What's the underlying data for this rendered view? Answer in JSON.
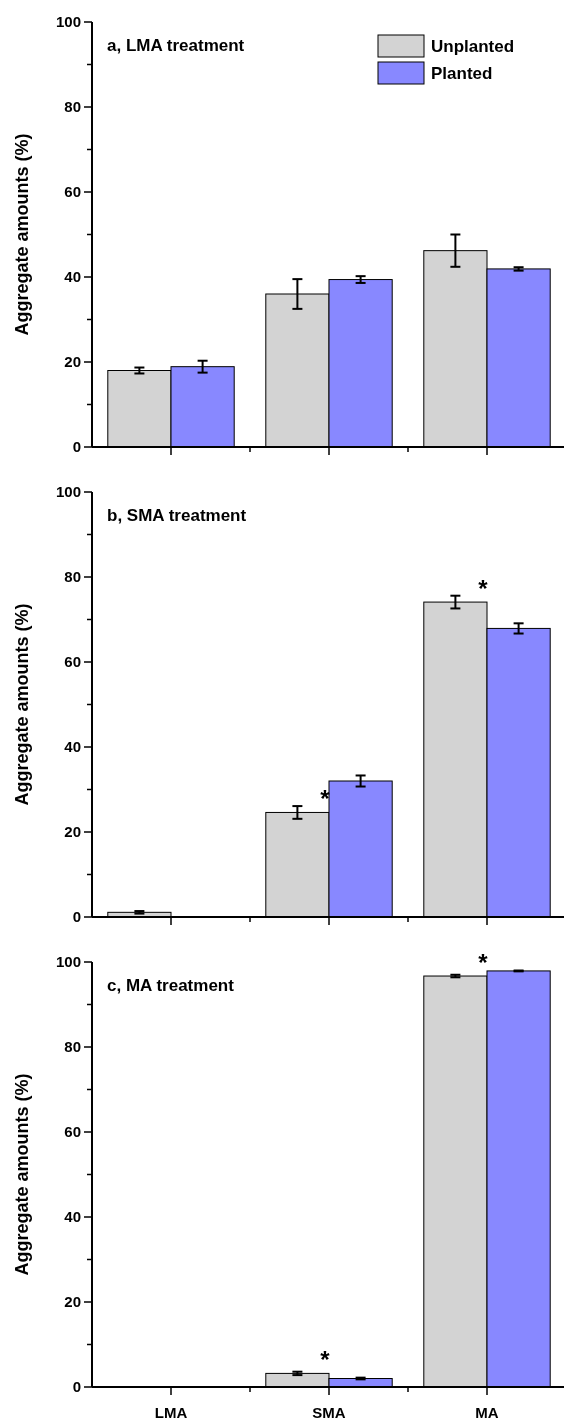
{
  "chart_data": [
    {
      "type": "bar",
      "title": "a, LMA treatment",
      "ylabel": "Aggregate amounts (%)",
      "categories": [
        "LMA",
        "SMA",
        "MA"
      ],
      "tick_labels": "y",
      "legend": "top right",
      "ylim": [
        0,
        100
      ],
      "yticks": [
        0,
        {
          "value": 10,
          "label": null
        },
        20,
        {
          "value": 30,
          "label": null
        },
        40,
        {
          "value": 50,
          "label": null
        },
        60,
        {
          "value": 70,
          "label": null
        },
        80,
        {
          "value": 90,
          "label": null
        },
        100
      ],
      "series": [
        {
          "name": "Unplanted",
          "color": "#d3d3d3",
          "values": [
            18,
            36,
            46.2
          ],
          "errors": [
            0.7,
            3.5,
            3.8
          ]
        },
        {
          "name": "Planted",
          "color": "#8888ff",
          "values": [
            18.9,
            39.4,
            41.9
          ],
          "errors": [
            1.4,
            0.8,
            0.4
          ]
        }
      ]
    },
    {
      "type": "bar",
      "title": "b, SMA treatment",
      "ylabel": "Aggregate amounts (%)",
      "categories": [
        "LMA",
        "SMA",
        "MA"
      ],
      "tick_labels": "y",
      "ylim": [
        0,
        100
      ],
      "yticks": [
        0,
        {
          "value": 10,
          "label": null
        },
        20,
        {
          "value": 30,
          "label": null
        },
        40,
        {
          "value": 50,
          "label": null
        },
        60,
        {
          "value": 70,
          "label": null
        },
        80,
        {
          "value": 90,
          "label": null
        },
        100
      ],
      "series": [
        {
          "color": "#d3d3d3",
          "values": [
            1.1,
            24.6,
            74.1
          ],
          "errors": [
            0.3,
            1.5,
            1.5
          ]
        },
        {
          "color": "#8888ff",
          "values": [
            null,
            32,
            67.9
          ],
          "errors": [
            null,
            1.3,
            1.2
          ]
        }
      ],
      "annotations": [
        {
          "text": "*",
          "x": "SMA",
          "y": 24.6
        },
        {
          "text": "*",
          "x": "MA",
          "y": 74.1
        }
      ]
    },
    {
      "type": "bar",
      "title": "c, MA treatment",
      "ylabel": "Aggregate amounts (%)",
      "categories": [
        "LMA",
        "SMA",
        "MA"
      ],
      "ylim": [
        0,
        100
      ],
      "yticks": [
        0,
        {
          "value": 10,
          "label": null
        },
        20,
        {
          "value": 30,
          "label": null
        },
        40,
        {
          "value": 50,
          "label": null
        },
        60,
        {
          "value": 70,
          "label": null
        },
        80,
        {
          "value": 90,
          "label": null
        },
        100
      ],
      "series": [
        {
          "color": "#d3d3d3",
          "values": [
            null,
            3.2,
            96.7
          ],
          "errors": [
            null,
            0.4,
            0.3
          ]
        },
        {
          "color": "#8888ff",
          "values": [
            null,
            2,
            97.9
          ],
          "errors": [
            null,
            0.2,
            0.1
          ]
        }
      ],
      "annotations": [
        {
          "text": "*",
          "x": "SMA",
          "y": 3.2
        },
        {
          "text": "*",
          "x": "MA",
          "y": 96.7
        }
      ]
    }
  ]
}
